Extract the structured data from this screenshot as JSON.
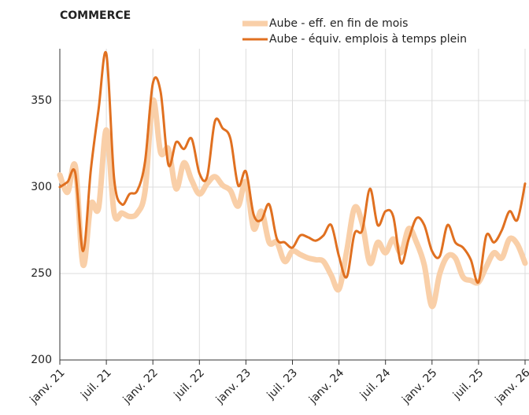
{
  "chart_data": {
    "type": "line",
    "title": "COMMERCE",
    "categories": [
      "janv. 21",
      null,
      null,
      null,
      null,
      null,
      "juil. 21",
      null,
      null,
      null,
      null,
      null,
      "janv. 22",
      null,
      null,
      null,
      null,
      null,
      "juil. 22",
      null,
      null,
      null,
      null,
      null,
      "janv. 23",
      null,
      null,
      null,
      null,
      null,
      "juil. 23",
      null,
      null,
      null,
      null,
      null,
      "janv. 24",
      null,
      null,
      null,
      null,
      null,
      "juil. 24",
      null,
      null,
      null,
      null,
      null,
      "janv. 25",
      null,
      null,
      null,
      null,
      null,
      "juil. 25",
      null,
      null,
      null,
      null,
      null,
      "janv. 26"
    ],
    "series": [
      {
        "name": "Aube - eff. en fin de mois",
        "color": "#f9cfa8",
        "width": 7,
        "values": [
          307,
          297,
          312,
          255,
          290,
          288,
          333,
          285,
          285,
          283,
          285,
          298,
          350,
          320,
          322,
          299,
          314,
          304,
          296,
          302,
          306,
          301,
          298,
          289,
          303,
          276,
          286,
          268,
          268,
          257,
          263,
          261,
          259,
          258,
          257,
          249,
          241,
          263,
          288,
          279,
          256,
          268,
          262,
          270,
          262,
          276,
          268,
          255,
          231,
          250,
          260,
          259,
          248,
          246,
          245,
          254,
          262,
          259,
          270,
          267,
          256
        ]
      },
      {
        "name": "Aube - équiv. emplois à temps plein",
        "color": "#e07020",
        "width": 3,
        "values": [
          300,
          303,
          308,
          263,
          310,
          345,
          377,
          305,
          290,
          296,
          298,
          315,
          360,
          355,
          313,
          326,
          322,
          328,
          308,
          306,
          338,
          334,
          328,
          301,
          309,
          284,
          281,
          290,
          270,
          268,
          265,
          272,
          271,
          269,
          272,
          278,
          260,
          248,
          273,
          275,
          299,
          278,
          286,
          283,
          256,
          270,
          282,
          278,
          263,
          260,
          278,
          268,
          265,
          258,
          245,
          272,
          268,
          275,
          286,
          281,
          302
        ]
      }
    ],
    "ylim": [
      200,
      380
    ],
    "yticks": [
      200,
      250,
      300,
      350
    ],
    "grid": true
  }
}
